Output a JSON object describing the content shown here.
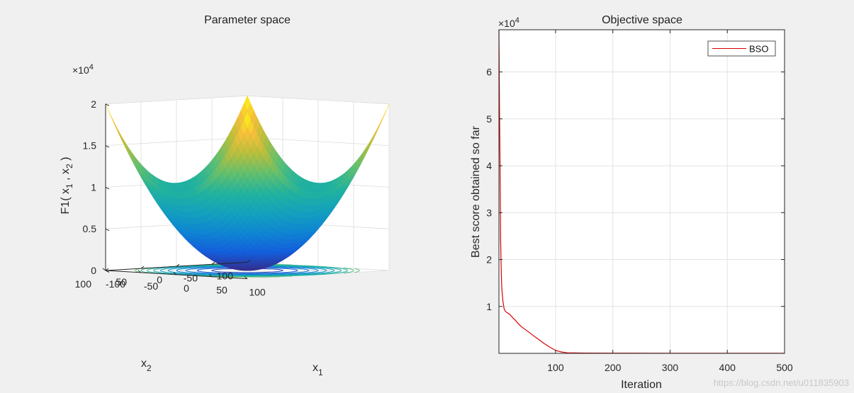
{
  "figure": {
    "background": "#f0f0f0",
    "watermark": "https://blog.csdn.net/u011835903"
  },
  "chart_data": [
    {
      "type": "surface",
      "title": "Parameter space",
      "function": "F1",
      "zlabel_parts": [
        "F1( x",
        "1",
        " , x",
        "2",
        " )"
      ],
      "xlabel_main": "x",
      "xlabel_sub": "1",
      "ylabel_main": "x",
      "ylabel_sub": "2",
      "x_range": [
        -100,
        100
      ],
      "y_range": [
        -100,
        100
      ],
      "z_range": [
        0,
        20000
      ],
      "x_ticks": [
        -100,
        -50,
        0,
        50,
        100
      ],
      "x_tick_labels": [
        "-100",
        "-50",
        "0",
        "50",
        "100"
      ],
      "y_ticks": [
        -100,
        -50,
        0,
        50,
        100
      ],
      "y_tick_labels": [
        "-100",
        "-50",
        "0",
        "50",
        "100"
      ],
      "z_ticks": [
        0,
        5000,
        10000,
        15000,
        20000
      ],
      "z_tick_labels": [
        "0",
        "0.5",
        "1",
        "1.5",
        "2"
      ],
      "z_exponent_base": "×10",
      "z_exponent_power": "4",
      "contour_levels": [
        1250,
        2500,
        3750,
        5000,
        6250,
        7500,
        8750,
        10000,
        11250,
        12500
      ],
      "colormap": "parula",
      "grid": true
    },
    {
      "type": "line",
      "title": "Objective space",
      "xlabel": "Iteration",
      "ylabel": "Best score obtained so far",
      "xlim": [
        1,
        500
      ],
      "ylim": [
        0,
        69000
      ],
      "x_ticks": [
        100,
        200,
        300,
        400,
        500
      ],
      "x_tick_labels": [
        "100",
        "200",
        "300",
        "400",
        "500"
      ],
      "y_ticks": [
        10000,
        20000,
        30000,
        40000,
        50000,
        60000
      ],
      "y_tick_labels": [
        "1",
        "2",
        "3",
        "4",
        "5",
        "6"
      ],
      "y_exponent_base": "×10",
      "y_exponent_power": "4",
      "grid": true,
      "legend": "top-right",
      "series": [
        {
          "name": "BSO",
          "color": "#d90000",
          "x": [
            1,
            2,
            3,
            4,
            5,
            6,
            8,
            10,
            12,
            15,
            20,
            25,
            30,
            35,
            40,
            50,
            60,
            70,
            80,
            90,
            100,
            110,
            120,
            150,
            200,
            300,
            400,
            500
          ],
          "y": [
            69000,
            52000,
            40000,
            24000,
            18000,
            14000,
            11000,
            9500,
            9000,
            8700,
            8300,
            7600,
            7000,
            6300,
            5700,
            4800,
            3900,
            3000,
            2100,
            1300,
            600,
            300,
            120,
            60,
            40,
            30,
            25,
            20
          ]
        }
      ]
    }
  ]
}
